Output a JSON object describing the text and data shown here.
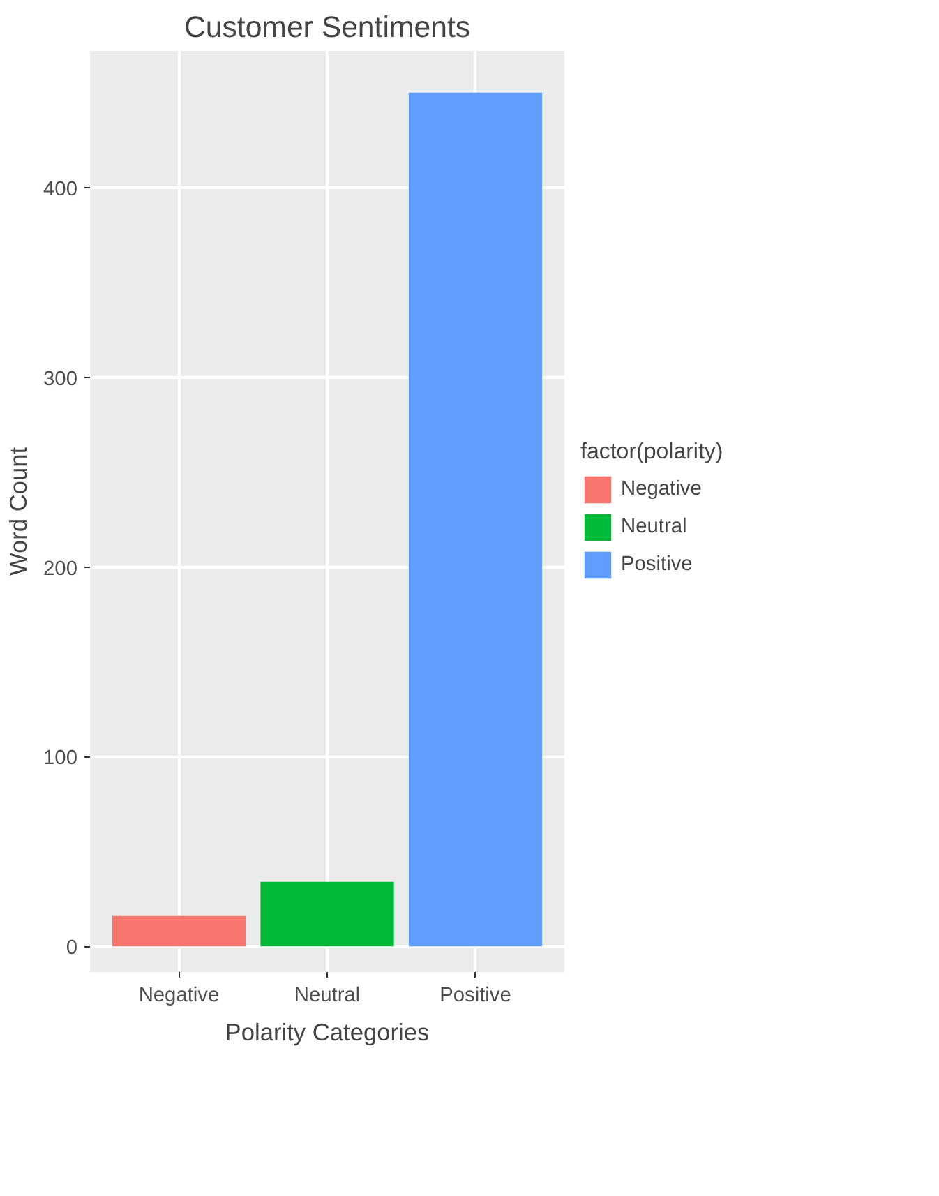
{
  "chart_data": {
    "type": "bar",
    "title": "Customer Sentiments",
    "xlabel": "Polarity Categories",
    "ylabel": "Word Count",
    "legend_title": "factor(polarity)",
    "categories": [
      "Negative",
      "Neutral",
      "Positive"
    ],
    "stacked": true,
    "series": [
      {
        "name": "Negative",
        "color": "#f8766d",
        "values": [
          16,
          null,
          null
        ]
      },
      {
        "name": "Neutral",
        "color": "#00ba38",
        "values": [
          null,
          34,
          null
        ]
      },
      {
        "name": "Positive",
        "color": "#619cff",
        "values": [
          null,
          null,
          450
        ]
      }
    ],
    "ylim": [
      -13.5,
      472
    ],
    "yticks": [
      0,
      100,
      200,
      300,
      400
    ],
    "grid": true,
    "legend": "right"
  }
}
